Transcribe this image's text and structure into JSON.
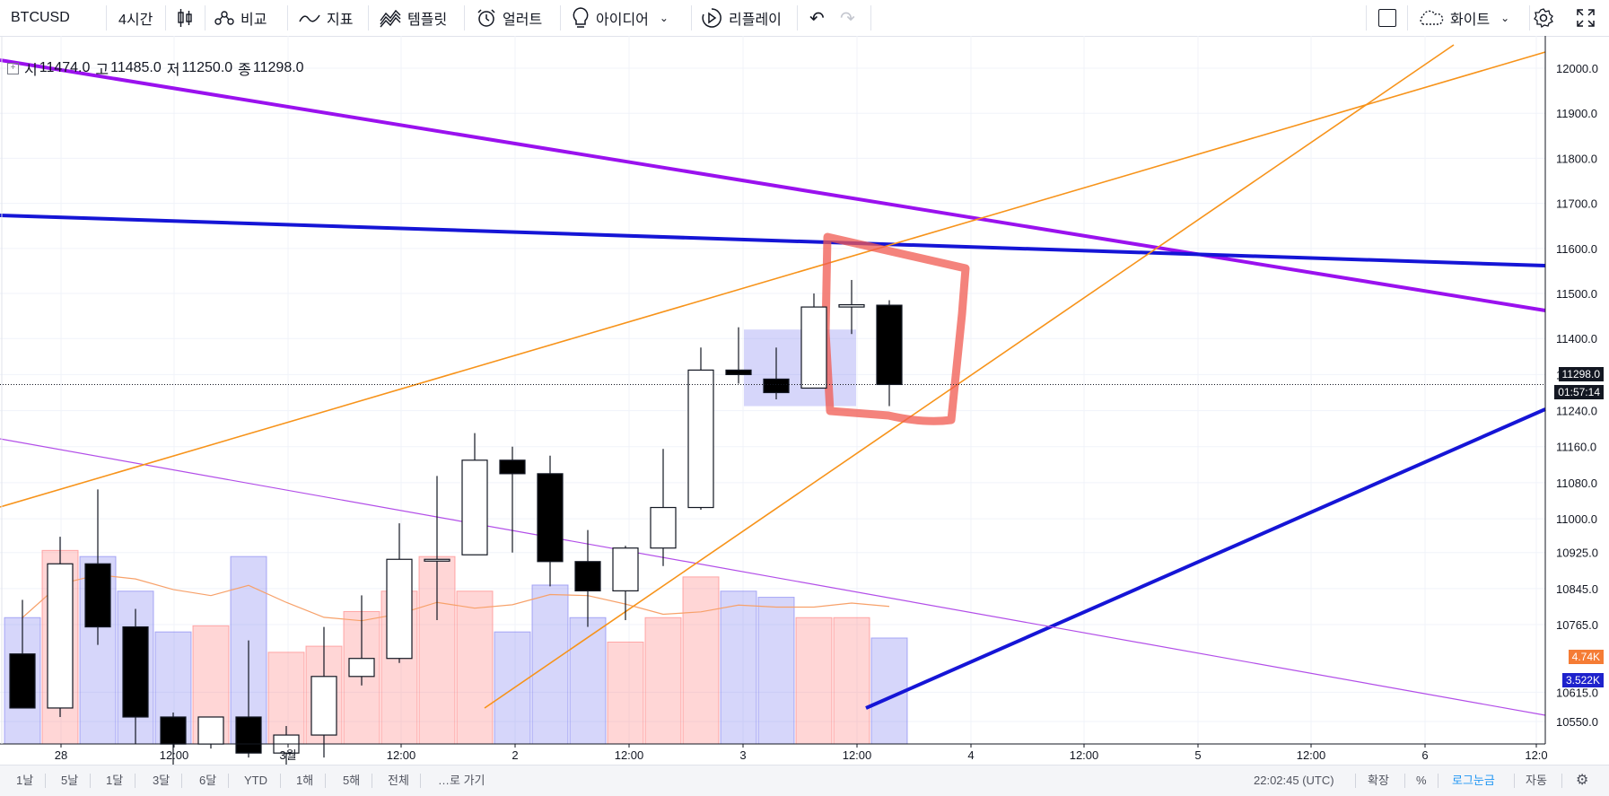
{
  "toolbar": {
    "symbol": "BTCUSD",
    "interval": "4시간",
    "compare": "비교",
    "indicators": "지표",
    "templates": "템플릿",
    "alerts": "얼러트",
    "ideas": "아이디어",
    "replay": "리플레이",
    "theme": "화이트"
  },
  "ohlc": {
    "open_label": "시",
    "open": "11474.0",
    "high_label": "고",
    "high": "11485.0",
    "low_label": "저",
    "low": "11250.0",
    "close_label": "종",
    "close": "11298.0"
  },
  "price_axis": [
    "12000.0",
    "11900.0",
    "11800.0",
    "11700.0",
    "11600.0",
    "11500.0",
    "11400.0",
    "11320.0",
    "11240.0",
    "11160.0",
    "11080.0",
    "11000.0",
    "10925.0",
    "10845.0",
    "10765.0",
    "10615.0",
    "10550.0"
  ],
  "badges": {
    "last_price": "11298.0",
    "countdown": "01:57:14",
    "volume": "4.74K",
    "volume_ma": "3.522K"
  },
  "time_axis": [
    "28",
    "12:00",
    "3월",
    "12:00",
    "2",
    "12:00",
    "3",
    "12:00",
    "4",
    "12:00",
    "5",
    "12:00",
    "6",
    "12:0"
  ],
  "chart_data": {
    "type": "candlestick",
    "candles": [
      {
        "o": 10700,
        "h": 10820,
        "l": 10580,
        "c": 10580
      },
      {
        "o": 10580,
        "h": 10960,
        "l": 10560,
        "c": 10900
      },
      {
        "o": 10900,
        "h": 11065,
        "l": 10720,
        "c": 10760
      },
      {
        "o": 10760,
        "h": 10800,
        "l": 10500,
        "c": 10560
      },
      {
        "o": 10560,
        "h": 10570,
        "l": 10430,
        "c": 10500
      },
      {
        "o": 10500,
        "h": 10560,
        "l": 10490,
        "c": 10560
      },
      {
        "o": 10560,
        "h": 10730,
        "l": 10470,
        "c": 10480
      },
      {
        "o": 10480,
        "h": 10540,
        "l": 10410,
        "c": 10520
      },
      {
        "o": 10520,
        "h": 10760,
        "l": 10470,
        "c": 10650
      },
      {
        "o": 10650,
        "h": 10830,
        "l": 10630,
        "c": 10690
      },
      {
        "o": 10690,
        "h": 10990,
        "l": 10680,
        "c": 10910
      },
      {
        "o": 10910,
        "h": 11095,
        "l": 10775,
        "c": 10910
      },
      {
        "o": 10920,
        "h": 11190,
        "l": 10920,
        "c": 11130
      },
      {
        "o": 11130,
        "h": 11160,
        "l": 10925,
        "c": 11100
      },
      {
        "o": 11100,
        "h": 11140,
        "l": 10850,
        "c": 10905
      },
      {
        "o": 10905,
        "h": 10975,
        "l": 10760,
        "c": 10840
      },
      {
        "o": 10840,
        "h": 10940,
        "l": 10775,
        "c": 10935
      },
      {
        "o": 10935,
        "h": 11155,
        "l": 10895,
        "c": 11025
      },
      {
        "o": 11025,
        "h": 11380,
        "l": 11020,
        "c": 11330
      },
      {
        "o": 11330,
        "h": 11425,
        "l": 11300,
        "c": 11320
      },
      {
        "o": 11310,
        "h": 11380,
        "l": 11265,
        "c": 11280
      },
      {
        "o": 11290,
        "h": 11500,
        "l": 11290,
        "c": 11470
      },
      {
        "o": 11470,
        "h": 11530,
        "l": 11410,
        "c": 11475
      },
      {
        "o": 11474,
        "h": 11485,
        "l": 11250,
        "c": 11298
      }
    ],
    "volume": [
      62,
      95,
      92,
      75,
      55,
      58,
      92,
      45,
      48,
      65,
      75,
      92,
      75,
      55,
      78,
      62,
      50,
      62,
      82,
      75,
      72,
      62,
      62,
      52
    ],
    "ylim": [
      10500,
      12020
    ]
  },
  "bottom": {
    "ranges": [
      "1날",
      "5날",
      "1달",
      "3달",
      "6달",
      "YTD",
      "1해",
      "5해",
      "전체"
    ],
    "goto": "…로 가기",
    "clock": "22:02:45 (UTC)",
    "extend": "확장",
    "percent": "%",
    "log": "로그눈금",
    "auto": "자동"
  }
}
